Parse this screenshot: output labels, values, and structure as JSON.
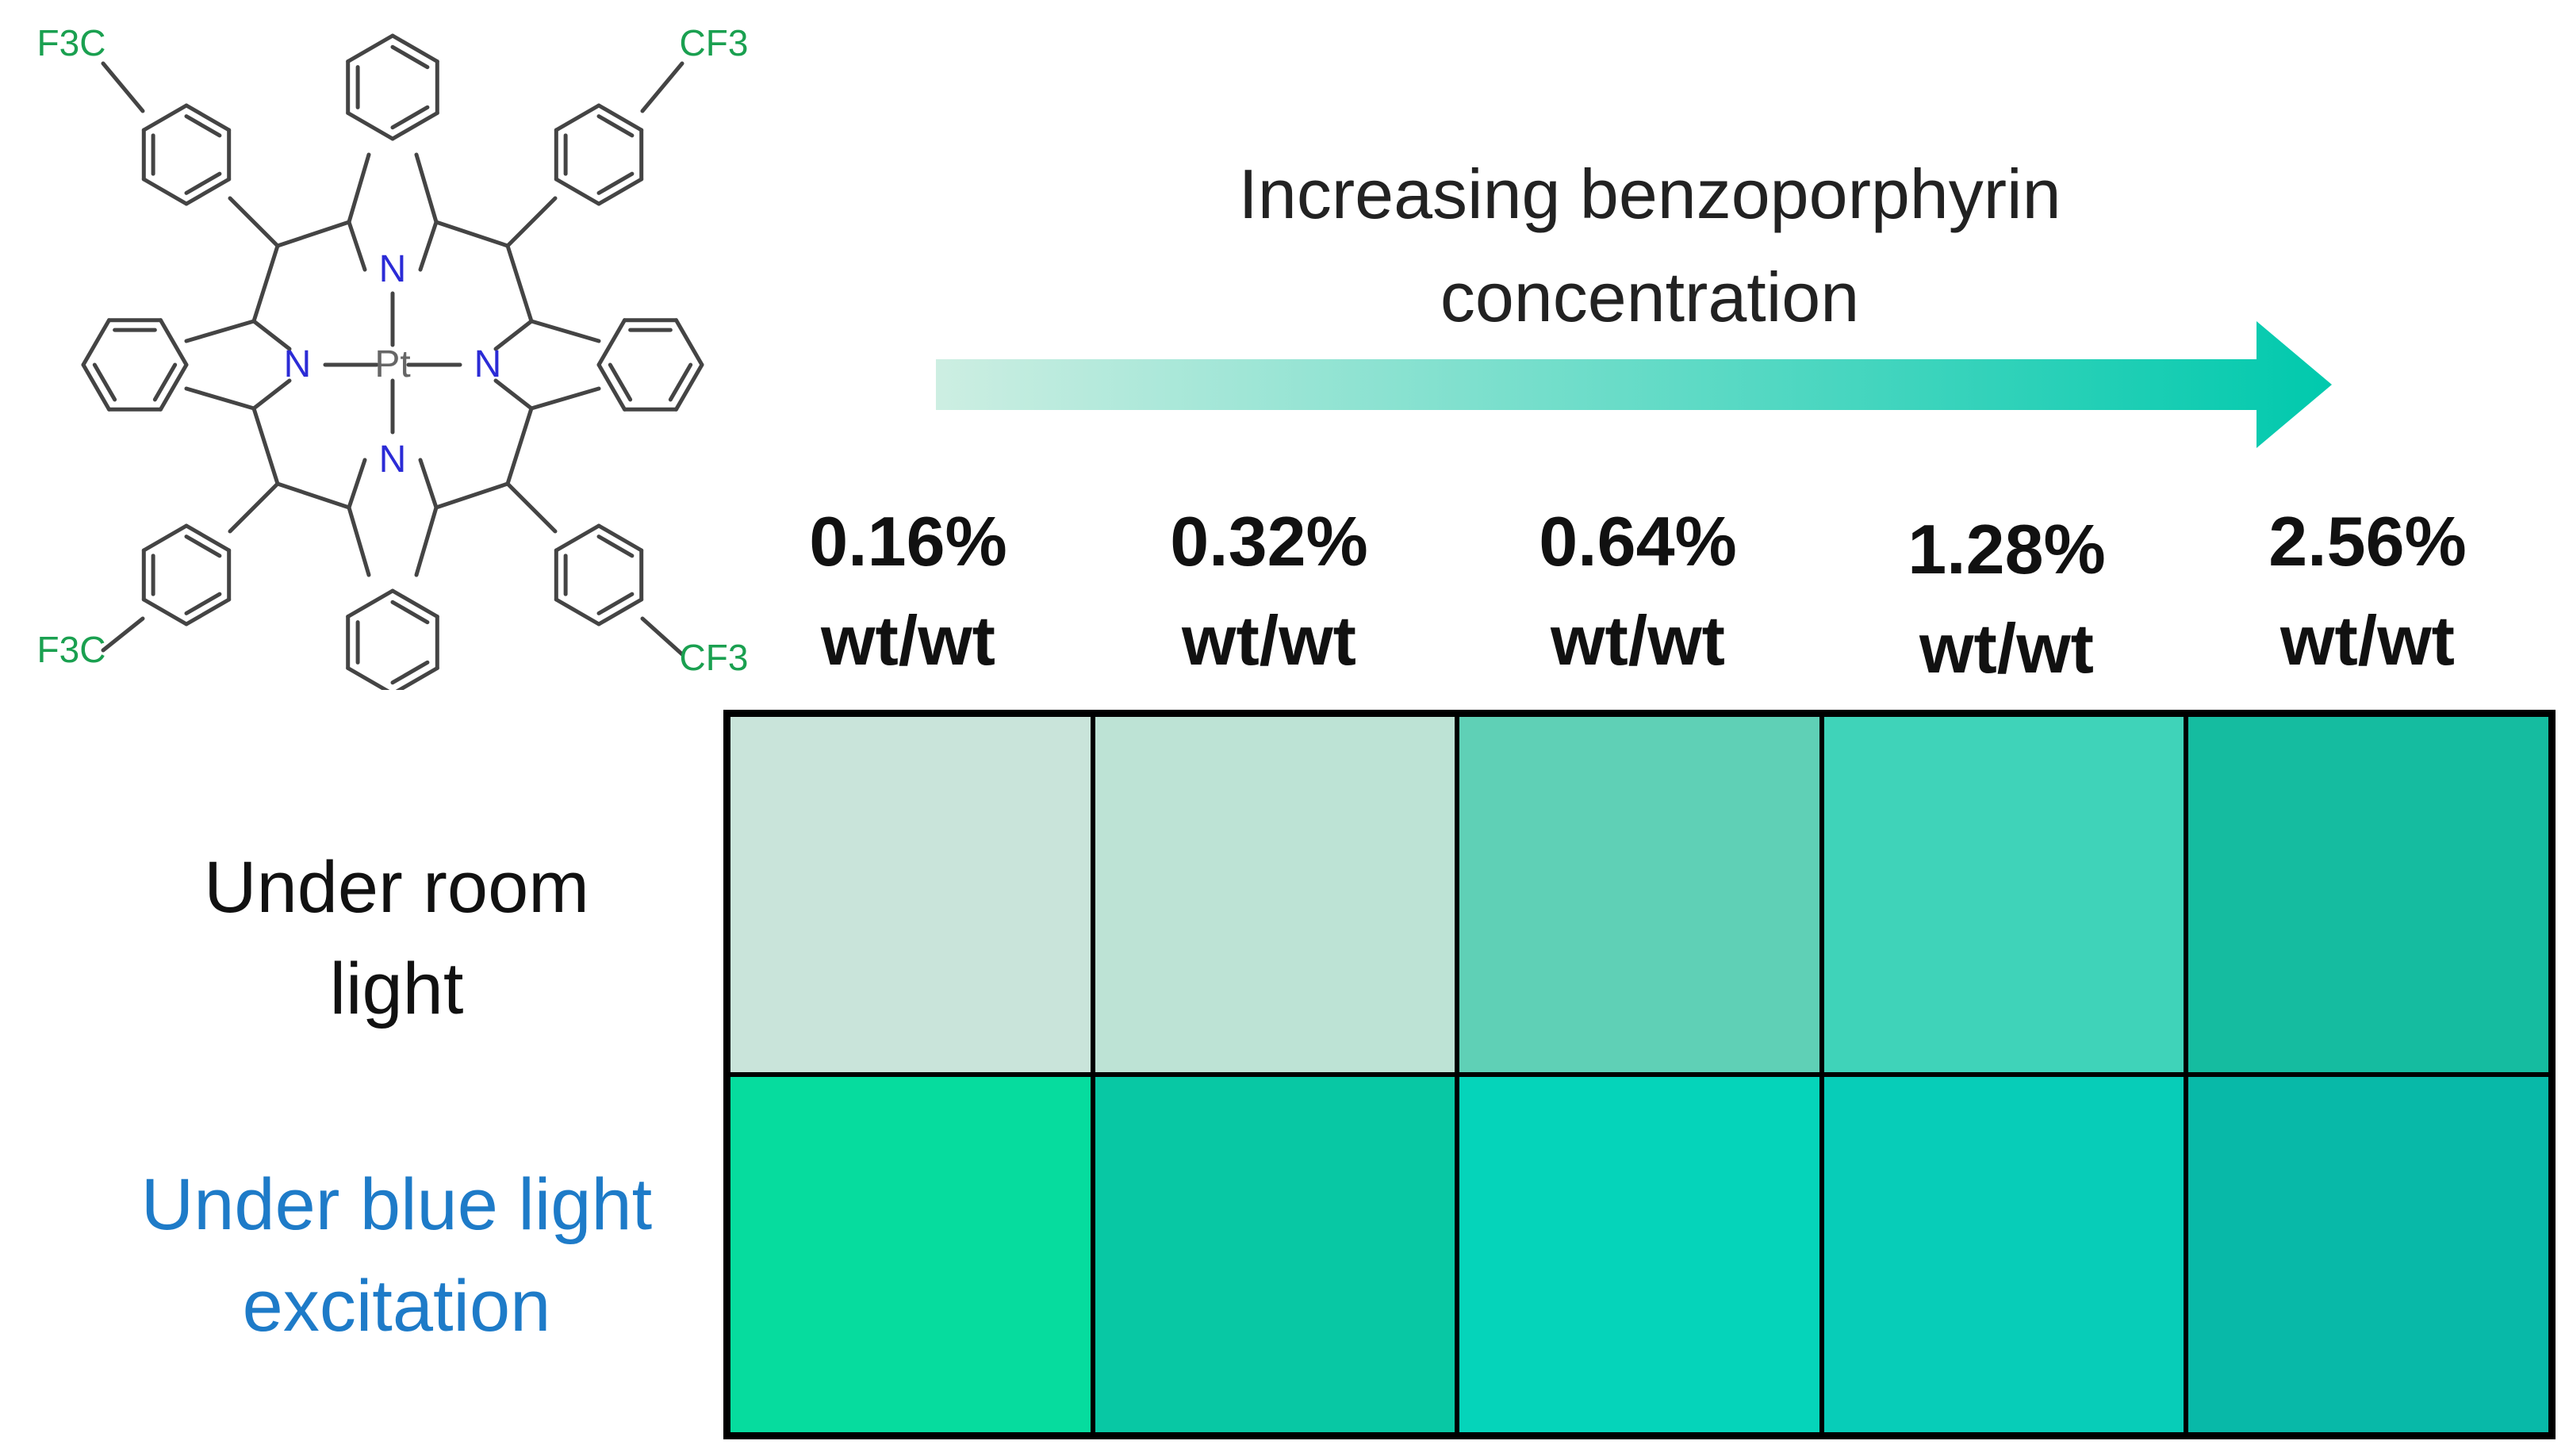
{
  "structure": {
    "atom_labels": {
      "n1": "N",
      "n2": "N",
      "n3": "N",
      "n4": "N",
      "metal": "Pt",
      "cf3_tl": "F3C",
      "cf3_tr": "CF3",
      "cf3_bl": "F3C",
      "cf3_br": "CF3"
    },
    "colors": {
      "bond": "#444444",
      "nitrogen": "#2b2bd6",
      "fluorine": "#1aa050"
    }
  },
  "arrow": {
    "label_line1": "Increasing benzoporphyrin",
    "label_line2": "concentration",
    "gradient_start": "#cdeee2",
    "gradient_end": "#00c9ad"
  },
  "concentrations": [
    {
      "value": "0.16%",
      "unit": "wt/wt"
    },
    {
      "value": "0.32%",
      "unit": "wt/wt"
    },
    {
      "value": "0.64%",
      "unit": "wt/wt"
    },
    {
      "value": "1.28%",
      "unit": "wt/wt"
    },
    {
      "value": "2.56%",
      "unit": "wt/wt"
    }
  ],
  "rows": [
    {
      "label_line1": "Under room",
      "label_line2": "light",
      "color": "#111111"
    },
    {
      "label_line1": "Under blue light",
      "label_line2": "excitation",
      "color": "#1e7bc8"
    }
  ],
  "swatches": {
    "room_light": [
      "#c9e4da",
      "#bde3d5",
      "#5fd0b6",
      "#3fd3b9",
      "#15bca0"
    ],
    "blue_light": [
      "#06dc9e",
      "#08c8a4",
      "#05d4ba",
      "#07cdb8",
      "#08b9a8"
    ]
  }
}
